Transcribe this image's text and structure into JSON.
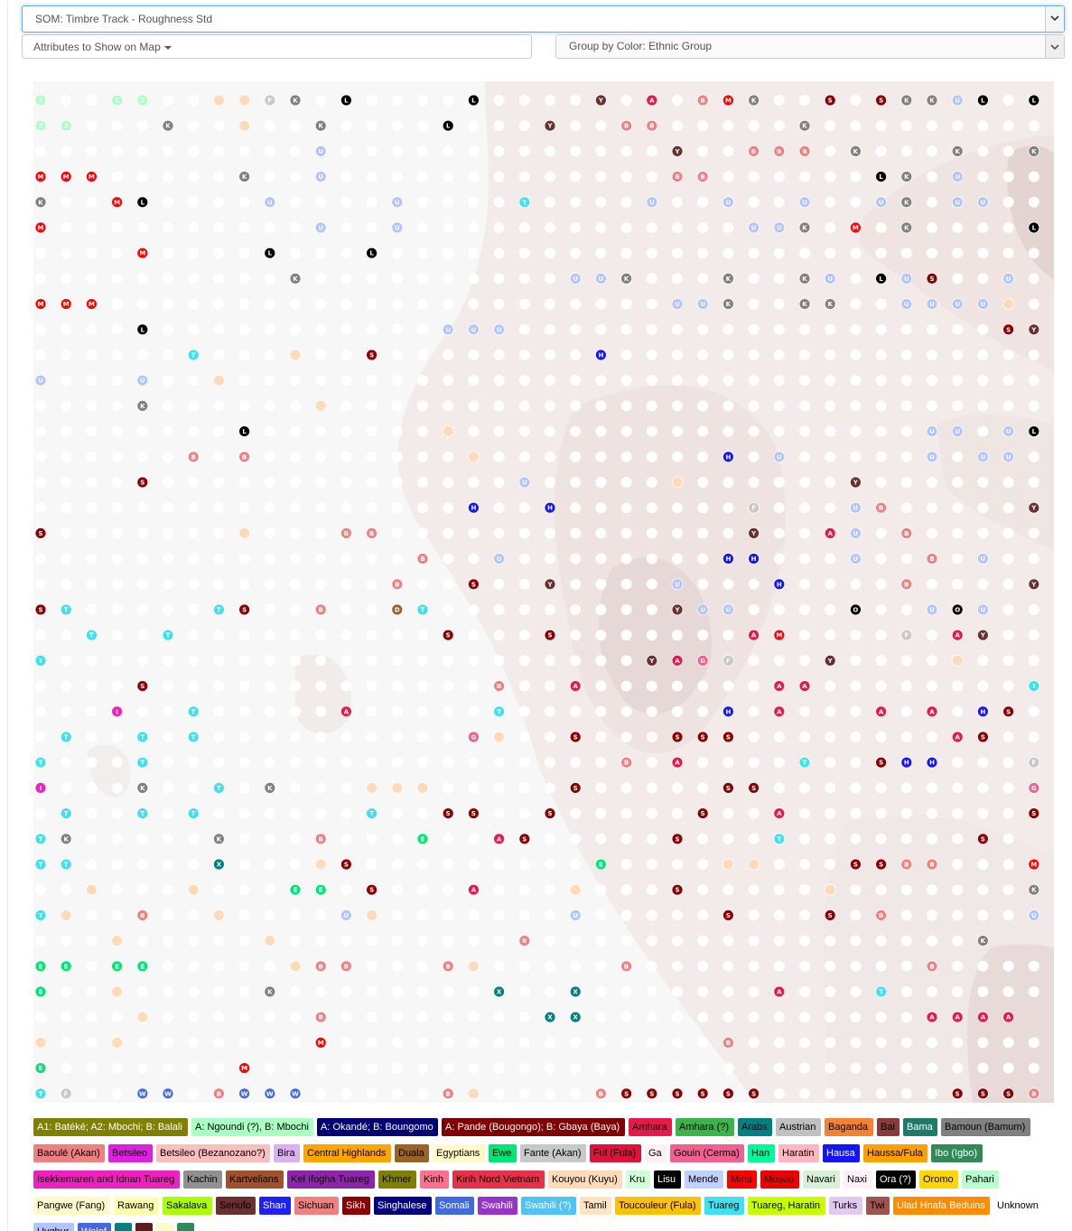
{
  "som_select": {
    "value": "SOM: Timbre Track - Roughness Std"
  },
  "attributes_button": {
    "label": "Attributes to Show on Map"
  },
  "group_select": {
    "value": "Group by Color: Ethnic Group"
  },
  "legend": [
    {
      "label": "A1: Batéké; A2: Mbochi; B: Balali",
      "bg": "#808000",
      "fg": "#ffffff"
    },
    {
      "label": "A: Ngoundi (?), B: Mbochi",
      "bg": "#aaffc3",
      "fg": "#000000"
    },
    {
      "label": "A: Okandé; B: Boungomo",
      "bg": "#000075",
      "fg": "#ffffff"
    },
    {
      "label": "A: Pande (Bougongo); B: Gbaya (Baya)",
      "bg": "#800000",
      "fg": "#ffffff"
    },
    {
      "label": "Amhara",
      "bg": "#e6194b",
      "fg": "#000000"
    },
    {
      "label": "Amhara (?)",
      "bg": "#3cb44b",
      "fg": "#000000"
    },
    {
      "label": "Arabs",
      "bg": "#008080",
      "fg": "#000000"
    },
    {
      "label": "Austrian",
      "bg": "#c0c0c0",
      "fg": "#000000"
    },
    {
      "label": "Baganda",
      "bg": "#f58231",
      "fg": "#000000"
    },
    {
      "label": "Bai",
      "bg": "#8b3a3a",
      "fg": "#000000"
    },
    {
      "label": "Bama",
      "bg": "#1f7a6a",
      "fg": "#ffffff"
    },
    {
      "label": "Bamoun (Bamum)",
      "bg": "#808080",
      "fg": "#000000"
    },
    {
      "label": "Baoulé (Akan)",
      "bg": "#f08080",
      "fg": "#000000"
    },
    {
      "label": "Betsileo",
      "bg": "#e020e0",
      "fg": "#000000"
    },
    {
      "label": "Betsileo (Bezanozano?)",
      "bg": "#fabebe",
      "fg": "#000000"
    },
    {
      "label": "Bira",
      "bg": "#dcb0f0",
      "fg": "#000000"
    },
    {
      "label": "Central Highlands",
      "bg": "#ffa500",
      "fg": "#000000"
    },
    {
      "label": "Duala",
      "bg": "#9a6324",
      "fg": "#000000"
    },
    {
      "label": "Egyptians",
      "bg": "#fffac8",
      "fg": "#000000"
    },
    {
      "label": "Ewe",
      "bg": "#00e676",
      "fg": "#000000"
    },
    {
      "label": "Fante (Akan)",
      "bg": "#c8c8c8",
      "fg": "#000000"
    },
    {
      "label": "Ful (Fula)",
      "bg": "#dc143c",
      "fg": "#000000"
    },
    {
      "label": "Ga",
      "bg": "#fff0f5",
      "fg": "#000000"
    },
    {
      "label": "Gouin (Cerma)",
      "bg": "#f06090",
      "fg": "#000000"
    },
    {
      "label": "Han",
      "bg": "#00fa9a",
      "fg": "#000000"
    },
    {
      "label": "Haratin",
      "bg": "#ffb6c1",
      "fg": "#000000"
    },
    {
      "label": "Hausa",
      "bg": "#1414ff",
      "fg": "#ffffff"
    },
    {
      "label": "Haussa/Fula",
      "bg": "#ffa000",
      "fg": "#000000"
    },
    {
      "label": "Ibo (Igbo)",
      "bg": "#2e8b57",
      "fg": "#ffffff"
    },
    {
      "label": "Isekkemaren and Idnan Tuareg",
      "bg": "#f020c0",
      "fg": "#000000"
    },
    {
      "label": "Kachin",
      "bg": "#909090",
      "fg": "#000000"
    },
    {
      "label": "Kartvelians",
      "bg": "#a0522d",
      "fg": "#000000"
    },
    {
      "label": "Kel Ifogha Tuareg",
      "bg": "#8e24aa",
      "fg": "#000000"
    },
    {
      "label": "Khmer",
      "bg": "#808000",
      "fg": "#000000"
    },
    {
      "label": "Kinh",
      "bg": "#ff7090",
      "fg": "#000000"
    },
    {
      "label": "Kinh Nord Vietnam",
      "bg": "#e8304a",
      "fg": "#000000"
    },
    {
      "label": "Kouyou (Kuyu)",
      "bg": "#ffdab9",
      "fg": "#000000"
    },
    {
      "label": "Kru",
      "bg": "#d0ffd8",
      "fg": "#000000"
    },
    {
      "label": "Lisu",
      "bg": "#000000",
      "fg": "#ffffff"
    },
    {
      "label": "Mende",
      "bg": "#c0d0ff",
      "fg": "#000000"
    },
    {
      "label": "Mina",
      "bg": "#ff0000",
      "fg": "#000000"
    },
    {
      "label": "Mosuo",
      "bg": "#ee0000",
      "fg": "#000000"
    },
    {
      "label": "Navari",
      "bg": "#d8f0d8",
      "fg": "#000000"
    },
    {
      "label": "Naxi",
      "bg": "#fff0f8",
      "fg": "#000000"
    },
    {
      "label": "Ora (?)",
      "bg": "#000000",
      "fg": "#ffffff"
    },
    {
      "label": "Oromo",
      "bg": "#ffd700",
      "fg": "#000000"
    },
    {
      "label": "Pahari",
      "bg": "#b8ffd0",
      "fg": "#000000"
    },
    {
      "label": "Pangwe (Fang)",
      "bg": "#fffacd",
      "fg": "#000000"
    },
    {
      "label": "Rawang",
      "bg": "#ffffb0",
      "fg": "#000000"
    },
    {
      "label": "Sakalava",
      "bg": "#aaff00",
      "fg": "#000000"
    },
    {
      "label": "Senufo",
      "bg": "#6b2f2f",
      "fg": "#000000"
    },
    {
      "label": "Shan",
      "bg": "#1e1eff",
      "fg": "#ffffff"
    },
    {
      "label": "Sichuan",
      "bg": "#f08080",
      "fg": "#000000"
    },
    {
      "label": "Sikh",
      "bg": "#8b0000",
      "fg": "#ffffff"
    },
    {
      "label": "Singhalese",
      "bg": "#000080",
      "fg": "#ffffff"
    },
    {
      "label": "Somali",
      "bg": "#4169e1",
      "fg": "#ffffff"
    },
    {
      "label": "Swahili",
      "bg": "#9932cc",
      "fg": "#ffffff"
    },
    {
      "label": "Swahili (?)",
      "bg": "#4fc3f7",
      "fg": "#ffffff"
    },
    {
      "label": "Tamil",
      "bg": "#ffe4c4",
      "fg": "#000000"
    },
    {
      "label": "Toucouleur (Fula)",
      "bg": "#ffc107",
      "fg": "#000000"
    },
    {
      "label": "Tuareg",
      "bg": "#40e0f0",
      "fg": "#000000"
    },
    {
      "label": "Tuareg, Haratin",
      "bg": "#c6ff00",
      "fg": "#000000"
    },
    {
      "label": "Turks",
      "bg": "#e0c8f0",
      "fg": "#000000"
    },
    {
      "label": "Twi",
      "bg": "#a0524d",
      "fg": "#000000"
    },
    {
      "label": "Ulad Hnafa Beduins",
      "bg": "#ff8c00",
      "fg": "#ffffff"
    },
    {
      "label": "Unknown",
      "bg": "#ffffff",
      "fg": "#000000"
    },
    {
      "label": "Uyghur",
      "bg": "#b0c4ff",
      "fg": "#000000"
    },
    {
      "label": "Wolof",
      "bg": "#4169e1",
      "fg": "#ffffff"
    },
    {
      "label": "",
      "bg": "#008080",
      "fg": "#000000"
    },
    {
      "label": "",
      "bg": "#5a1e1e",
      "fg": "#000000"
    },
    {
      "label": "",
      "bg": "#fffac8",
      "fg": "#000000"
    },
    {
      "label": "",
      "bg": "#2e8b57",
      "fg": "#000000"
    }
  ],
  "map": {
    "letter_colors": {
      "A": "#e6194b",
      "B": "#f08080",
      "C": "#ffa500",
      "D": "#9a6324",
      "E": "#00e676",
      "F": "#c8c8c8",
      "G": "#f06090",
      "H": "#1414ff",
      "I": "#f020c0",
      "K": "#808080",
      "L": "#000000",
      "M": "#ff0000",
      "N": "#d8f0d8",
      "O": "#000000",
      "Q": "#d0ffd8",
      "R": "#ffd700",
      "S": "#8b0000",
      "T": "#40e0f0",
      "U": "#b0c4ff",
      "W": "#4169e1",
      "X": "#008080",
      "Y": "#6b2f2f",
      "Z": "#aaffc3"
    },
    "nodes": [
      "Z..ZZ..JJFK.L....L....Y.A.BMK..S.SKKUL.LU.ZY",
      "ZZ...K..J..K....L...Y..BB.....K.............",
      "...........U.............Y..BBB.K...K..K..KK",
      "MMM.....K..U.............BB......LK.U.......",
      "K..ML....U....U....T....U..U..U..UK.UU...Y..",
      "M..........U..U.............UUK.M.K....L.UU.",
      "....M....L...L..........................U.B.",
      "..........K..........UUK...K..KU.LUS..U.....",
      "MMM......................UUK..KK..UUUUJ...B.",
      "....L...........UUU...................SYU...",
      "......T...J..S........H..........................",
      "U...U..J................................K..K...S.LY",
      "....K......J.............................KUU.S..SSL.",
      "........L.......J..................UU.UL.UM.......L",
      "......B.B........J.........H.U.....U.UU.......SUUS",
      "....S..............U.....J......Y.........K..S..SS",
      ".................H..H.......F...UB.....Y.YYY..Y.",
      "S.......J...BB..............Y..AU.B.......Y...S.",
      "...............B..U........HH...U..B.U..Y.Y.....B",
      "..............B..S..Y....U...H....B....YYY.YY...",
      "ST.....TS..B..DT.........YUU....O..UOU..Y....Y",
      "..T..T..........S...S.......AM....F.AY....T..T",
      "T.......................YAGF...Y....J....AA.Y.TT",
      "....S.............B..A.......AA........T...D..",
      "...I..T.....A.....T........H.A...A.A.HS.A..T..",
      ".T..T.T..........GJ..S...SSS........AS....S.A",
      "T...T..................B.A....T..SHH...F.H..A..D...G",
      "I...K..T.K...JJJ.....S.....SS..........G",
      ".T..T.T......T..SS..S.....S..A.........S..BD.",
      "TK.....K...B...E..AS.....S...T.......S.",
      "TT.....X...JS.........E....JJ...SSBB...MB..BB",
      "..J...J...EE.S...A...J...S.....J.......K",
      "TJ..B..J....UJ.......U.....S...S.B.....U.AA.K.Y",
      "...J.....J.........B.................K",
      "EE.EE.....JBB...BJ.....B...........B.....B..Y.K.",
      "E..J.....K........X..X.......A...T.......K.Y",
      "....J......B........XX.............AAAA",
      "J..J.......M...............B...................UUY",
      "E.......M.......................................B....U",
      "TF..WW.BWWW.....BJ....BSSSSSS.......SSSBS..BSBBAUUU"
    ]
  }
}
